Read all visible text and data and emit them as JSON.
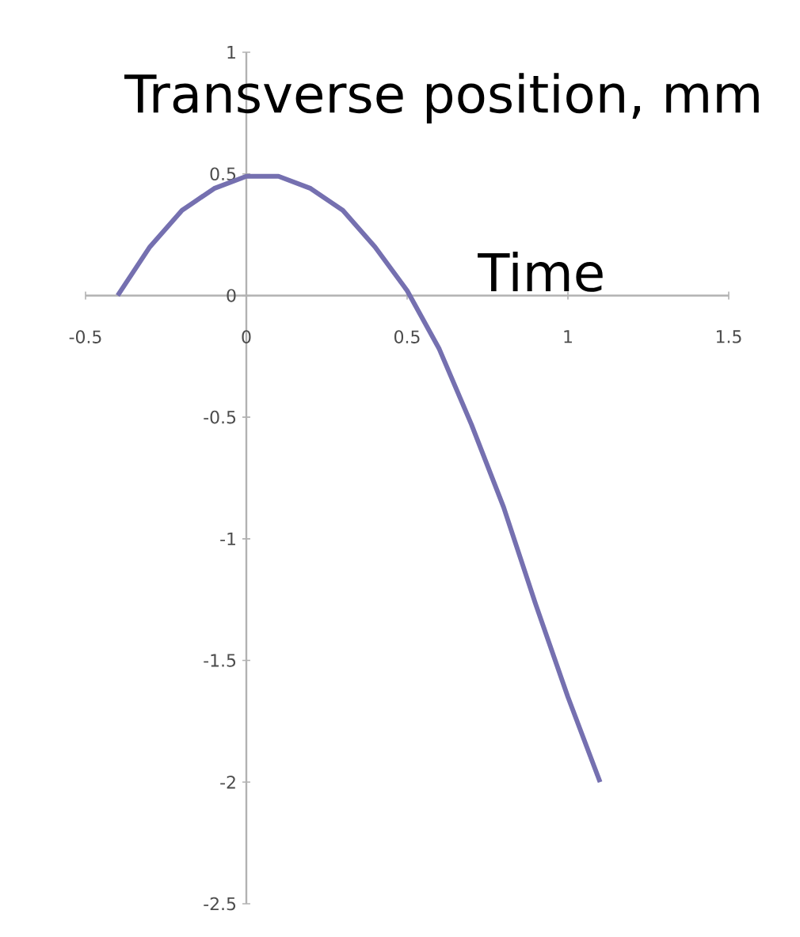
{
  "chart_data": {
    "type": "line",
    "xlabel": "Time",
    "ylabel": "Transverse position, mm",
    "x": [
      -0.4,
      -0.3,
      -0.2,
      -0.1,
      0,
      0.1,
      0.2,
      0.3,
      0.4,
      0.5,
      0.6,
      0.7,
      0.8,
      0.9,
      1.0,
      1.1
    ],
    "series": [
      {
        "color": "#7570b0",
        "values": [
          0,
          0.2,
          0.35,
          0.44,
          0.49,
          0.49,
          0.44,
          0.35,
          0.2,
          0.02,
          -0.22,
          -0.53,
          -0.87,
          -1.27,
          -1.65,
          -2.0
        ]
      }
    ],
    "xlim": [
      -0.5,
      1.5
    ],
    "ylim": [
      -2.5,
      1
    ],
    "xticks": [
      -0.5,
      0,
      0.5,
      1,
      1.5
    ],
    "yticks": [
      -2.5,
      -2,
      -1.5,
      -1,
      -0.5,
      0,
      0.5,
      1
    ],
    "grid": false,
    "marker": "none",
    "line_style": "solid"
  }
}
